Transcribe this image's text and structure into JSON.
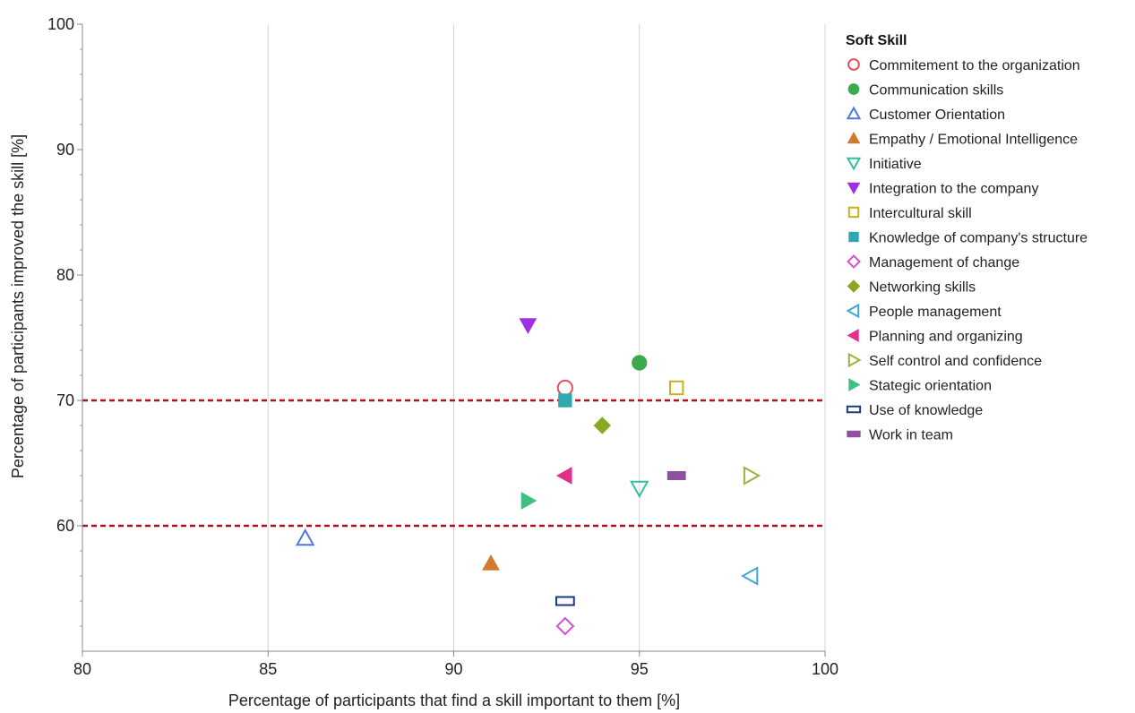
{
  "chart_data": {
    "type": "scatter",
    "xlabel": "Percentage of participants that find a skill important to them [%]",
    "ylabel": "Percentage of participants improved the skill [%]",
    "xlim": [
      80,
      100
    ],
    "ylim": [
      50,
      100
    ],
    "x_ticks": [
      "80",
      "85",
      "90",
      "95",
      "100"
    ],
    "y_ticks": [
      "60",
      "70",
      "80",
      "90",
      "100"
    ],
    "grid": "vertical",
    "reference_lines": [
      {
        "y": 70,
        "style": "dashed",
        "color": "#b01020"
      },
      {
        "y": 60,
        "style": "dashed",
        "color": "#b01020"
      }
    ],
    "legend": {
      "title": "Soft Skill",
      "placement": "right"
    },
    "series": [
      {
        "name": "Commitement to the organization",
        "x": 93,
        "y": 71,
        "marker": "circle-open",
        "color": "#e05060"
      },
      {
        "name": "Communication skills",
        "x": 95,
        "y": 73,
        "marker": "circle-filled",
        "color": "#3aaa4a"
      },
      {
        "name": "Customer Orientation",
        "x": 86,
        "y": 59,
        "marker": "triangle-up-open",
        "color": "#4a78e0"
      },
      {
        "name": "Empathy / Emotional Intelligence",
        "x": 91,
        "y": 57,
        "marker": "triangle-up-filled",
        "color": "#d07a30"
      },
      {
        "name": "Initiative",
        "x": 95,
        "y": 63,
        "marker": "triangle-down-open",
        "color": "#30c0a0"
      },
      {
        "name": "Integration to the company",
        "x": 92,
        "y": 76,
        "marker": "triangle-down-filled",
        "color": "#a030e0"
      },
      {
        "name": "Intercultural skill",
        "x": 96,
        "y": 71,
        "marker": "square-open",
        "color": "#c8b020"
      },
      {
        "name": "Knowledge of company's structure",
        "x": 93,
        "y": 70,
        "marker": "square-filled",
        "color": "#30a8b0"
      },
      {
        "name": "Management of change",
        "x": 93,
        "y": 52,
        "marker": "diamond-open",
        "color": "#d850d0"
      },
      {
        "name": "Networking skills",
        "x": 94,
        "y": 68,
        "marker": "diamond-filled",
        "color": "#8aa820"
      },
      {
        "name": "People management",
        "x": 98,
        "y": 56,
        "marker": "triangle-left-open",
        "color": "#40a8d0"
      },
      {
        "name": "Planning and organizing",
        "x": 93,
        "y": 64,
        "marker": "triangle-left-filled",
        "color": "#e0308a"
      },
      {
        "name": "Self control and confidence",
        "x": 98,
        "y": 64,
        "marker": "triangle-right-open",
        "color": "#a0b040"
      },
      {
        "name": "Stategic orientation",
        "x": 92,
        "y": 62,
        "marker": "triangle-right-filled",
        "color": "#40c080"
      },
      {
        "name": "Use of knowledge",
        "x": 93,
        "y": 54,
        "marker": "rect-open",
        "color": "#1a3a80"
      },
      {
        "name": "Work in team",
        "x": 96,
        "y": 64,
        "marker": "rect-filled",
        "color": "#9050a0"
      }
    ]
  }
}
